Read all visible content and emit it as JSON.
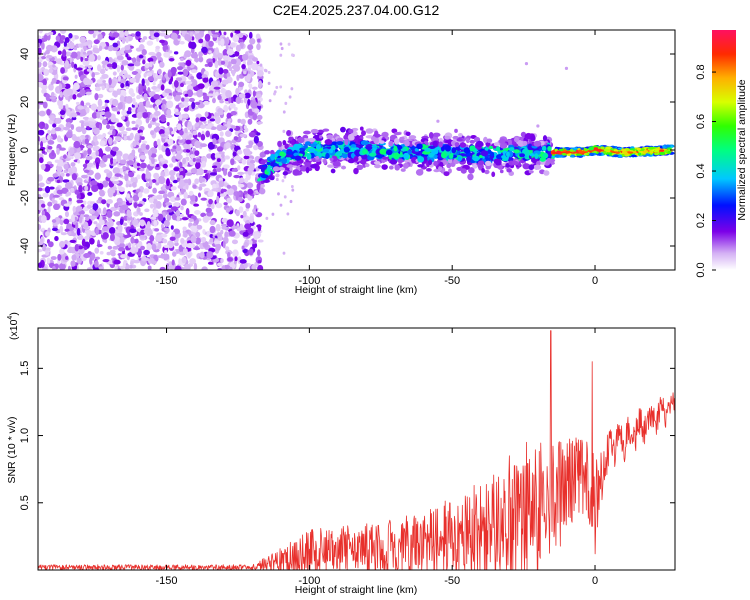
{
  "title": "C2E4.2025.237.04.00.G12",
  "chart_data": [
    {
      "type": "heatmap",
      "name": "spectrogram",
      "xlabel": "Height of straight line (km)",
      "ylabel": "Frequency (Hz)",
      "xlim": [
        -195,
        28
      ],
      "ylim": [
        -50,
        50
      ],
      "x_ticks": [
        -150,
        -100,
        -50,
        0
      ],
      "x_tick_labels": [
        "-150",
        "-100",
        "-50",
        "0"
      ],
      "y_ticks": [
        -40,
        -20,
        0,
        20,
        40
      ],
      "y_tick_labels": [
        "-40",
        "-20",
        "0",
        "20",
        "40"
      ],
      "noise_region_km": [
        -195,
        -117
      ],
      "signal_band": [
        {
          "x": -117,
          "freq": -10
        },
        {
          "x": -110,
          "freq": -3
        },
        {
          "x": -100,
          "freq": 0
        },
        {
          "x": -80,
          "freq": 0
        },
        {
          "x": -60,
          "freq": -1
        },
        {
          "x": -40,
          "freq": -2
        },
        {
          "x": -25,
          "freq": -1
        },
        {
          "x": -15,
          "freq": -1
        },
        {
          "x": -5,
          "freq": -1
        },
        {
          "x": 0,
          "freq": 0
        },
        {
          "x": 10,
          "freq": -1
        },
        {
          "x": 27,
          "freq": 0
        }
      ],
      "colorbar": {
        "label": "Normalized spectral amplitude",
        "range": [
          0,
          0.97
        ],
        "ticks": [
          0.0,
          0.2,
          0.4,
          0.6,
          0.8
        ],
        "tick_labels": [
          "0.0",
          "0.2",
          "0.4",
          "0.6",
          "0.8"
        ]
      }
    },
    {
      "type": "line",
      "name": "snr",
      "xlabel": "Height of straight line (km)",
      "ylabel": "SNR (10 * v/v)",
      "y_multiplier": "(x10",
      "y_multiplier_exp": "4",
      "y_multiplier_close": ")",
      "xlim": [
        -195,
        28
      ],
      "ylim": [
        0,
        1.8
      ],
      "x_ticks": [
        -150,
        -100,
        -50,
        0
      ],
      "x_tick_labels": [
        "-150",
        "-100",
        "-50",
        "0"
      ],
      "y_ticks": [
        0.5,
        1.0,
        1.5
      ],
      "y_tick_labels": [
        "0.5",
        "1.0",
        "1.5"
      ],
      "series": [
        {
          "name": "SNR",
          "color": "#e8302c",
          "envelope": [
            {
              "x": -195,
              "base": 0.02,
              "amp": 0.02
            },
            {
              "x": -120,
              "base": 0.02,
              "amp": 0.02
            },
            {
              "x": -113,
              "base": 0.05,
              "amp": 0.08
            },
            {
              "x": -100,
              "base": 0.12,
              "amp": 0.18
            },
            {
              "x": -80,
              "base": 0.15,
              "amp": 0.2
            },
            {
              "x": -60,
              "base": 0.18,
              "amp": 0.25
            },
            {
              "x": -45,
              "base": 0.25,
              "amp": 0.35
            },
            {
              "x": -30,
              "base": 0.32,
              "amp": 0.45
            },
            {
              "x": -20,
              "base": 0.4,
              "amp": 0.55
            },
            {
              "x": -15,
              "base": 0.5,
              "amp": 0.45
            },
            {
              "x": -5,
              "base": 0.75,
              "amp": 0.3
            },
            {
              "x": 0,
              "base": 0.5,
              "amp": 0.35
            },
            {
              "x": 5,
              "base": 0.9,
              "amp": 0.15
            },
            {
              "x": 15,
              "base": 1.05,
              "amp": 0.12
            },
            {
              "x": 27,
              "base": 1.22,
              "amp": 0.08
            }
          ],
          "peaks": [
            {
              "x": -15.5,
              "y": 1.78
            },
            {
              "x": -1,
              "y": 1.55
            },
            {
              "x": 0,
              "y": 0.12
            },
            {
              "x": -12,
              "y": 0.95
            },
            {
              "x": -30,
              "y": 0.85
            },
            {
              "x": -24,
              "y": 0.95
            }
          ]
        }
      ]
    }
  ]
}
